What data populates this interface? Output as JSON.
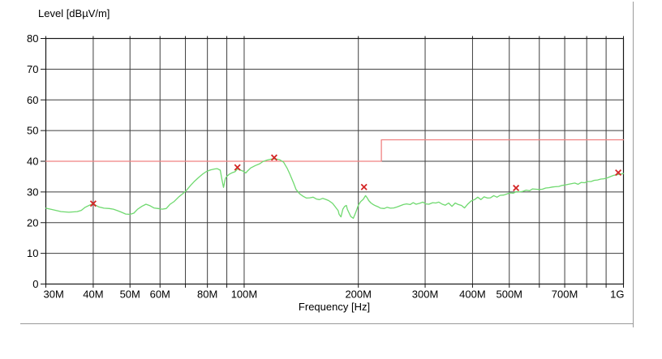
{
  "chart_data": {
    "type": "line",
    "title": "Level [dBµV/m]",
    "xlabel": "Frequency [Hz]",
    "x_scale": "log",
    "x_range_mhz": [
      30,
      1000
    ],
    "ylim": [
      0,
      80
    ],
    "grid": true,
    "legend": "none",
    "y_ticks": [
      0,
      10,
      20,
      30,
      40,
      50,
      60,
      70,
      80
    ],
    "x_gridlines_mhz": [
      30,
      40,
      50,
      60,
      70,
      80,
      90,
      100,
      200,
      300,
      400,
      500,
      600,
      700,
      800,
      900,
      1000
    ],
    "x_tick_labels": [
      {
        "mhz": 30,
        "label": "30M"
      },
      {
        "mhz": 40,
        "label": "40M"
      },
      {
        "mhz": 50,
        "label": "50M"
      },
      {
        "mhz": 60,
        "label": "60M"
      },
      {
        "mhz": 80,
        "label": "80M"
      },
      {
        "mhz": 100,
        "label": "100M"
      },
      {
        "mhz": 200,
        "label": "200M"
      },
      {
        "mhz": 300,
        "label": "300M"
      },
      {
        "mhz": 400,
        "label": "400M"
      },
      {
        "mhz": 500,
        "label": "500M"
      },
      {
        "mhz": 700,
        "label": "700M"
      },
      {
        "mhz": 1000,
        "label": "1G"
      }
    ],
    "colors": {
      "grid": "#3f3f3f",
      "axis": "#161616",
      "text": "#000000",
      "frame": "#9a9a9a"
    },
    "series": [
      {
        "name": "limit-line",
        "role": "emission-limit",
        "color": "#f08282",
        "width": 1.3,
        "points_mhz_db": [
          [
            30,
            40
          ],
          [
            230,
            40
          ],
          [
            230,
            47
          ],
          [
            1000,
            47
          ]
        ]
      },
      {
        "name": "measurement-trace",
        "role": "scan-trace",
        "color": "#6fd96f",
        "width": 1.3,
        "points_mhz_db": [
          [
            30,
            24.7
          ],
          [
            31.3,
            24.2
          ],
          [
            32.9,
            23.6
          ],
          [
            34.5,
            23.4
          ],
          [
            36.3,
            23.6
          ],
          [
            37.2,
            24.0
          ],
          [
            38.1,
            25.0
          ],
          [
            39.1,
            25.7
          ],
          [
            40,
            26.2
          ],
          [
            40.6,
            25.7
          ],
          [
            41.4,
            25.1
          ],
          [
            42.7,
            24.7
          ],
          [
            44.1,
            24.6
          ],
          [
            45.2,
            24.4
          ],
          [
            46.4,
            23.9
          ],
          [
            47.5,
            23.4
          ],
          [
            48.7,
            22.8
          ],
          [
            50,
            22.7
          ],
          [
            51.2,
            23.1
          ],
          [
            52.4,
            24.4
          ],
          [
            53.7,
            25.3
          ],
          [
            55.1,
            26.0
          ],
          [
            56.5,
            25.5
          ],
          [
            57.8,
            24.8
          ],
          [
            59.3,
            24.6
          ],
          [
            60.8,
            24.4
          ],
          [
            62.3,
            24.6
          ],
          [
            63.8,
            26.0
          ],
          [
            65.4,
            26.9
          ],
          [
            67.1,
            28.3
          ],
          [
            68.7,
            29.3
          ],
          [
            70.4,
            30.5
          ],
          [
            72.2,
            32.1
          ],
          [
            74,
            33.5
          ],
          [
            75.8,
            34.7
          ],
          [
            77.7,
            35.8
          ],
          [
            79.6,
            36.7
          ],
          [
            81.6,
            37.2
          ],
          [
            83.6,
            37.5
          ],
          [
            84.9,
            37.6
          ],
          [
            86.5,
            37.1
          ],
          [
            87.4,
            34.0
          ],
          [
            88.2,
            31.5
          ],
          [
            89.2,
            34.4
          ],
          [
            90,
            35.1
          ],
          [
            91.4,
            35.8
          ],
          [
            92.7,
            36.2
          ],
          [
            94.6,
            36.6
          ],
          [
            96,
            37.5
          ],
          [
            97.4,
            37.2
          ],
          [
            99.3,
            36.8
          ],
          [
            101,
            36.2
          ],
          [
            102,
            36.8
          ],
          [
            104,
            37.8
          ],
          [
            107,
            38.6
          ],
          [
            110,
            39.2
          ],
          [
            112,
            39.9
          ],
          [
            115,
            40.4
          ],
          [
            118,
            40.7
          ],
          [
            121,
            40.8
          ],
          [
            124,
            40.5
          ],
          [
            127,
            39.7
          ],
          [
            130,
            37.6
          ],
          [
            132,
            35.8
          ],
          [
            135,
            32.9
          ],
          [
            137,
            30.8
          ],
          [
            140,
            29.4
          ],
          [
            143,
            28.6
          ],
          [
            146,
            28.0
          ],
          [
            149,
            28.1
          ],
          [
            152,
            28.3
          ],
          [
            155,
            27.7
          ],
          [
            158,
            27.5
          ],
          [
            161,
            27.9
          ],
          [
            164,
            27.6
          ],
          [
            167,
            27.2
          ],
          [
            171,
            26.3
          ],
          [
            174,
            25.1
          ],
          [
            177,
            23.9
          ],
          [
            178,
            22.7
          ],
          [
            180,
            21.9
          ],
          [
            182,
            24.4
          ],
          [
            184,
            25.3
          ],
          [
            186,
            25.6
          ],
          [
            187,
            24.4
          ],
          [
            189,
            23.2
          ],
          [
            191,
            22.0
          ],
          [
            194,
            21.4
          ],
          [
            197,
            23.4
          ],
          [
            200,
            25.7
          ],
          [
            203,
            26.9
          ],
          [
            206,
            27.6
          ],
          [
            209,
            28.8
          ],
          [
            211,
            28.1
          ],
          [
            213,
            27.2
          ],
          [
            216,
            26.4
          ],
          [
            219,
            25.9
          ],
          [
            222,
            25.5
          ],
          [
            226,
            25.1
          ],
          [
            229,
            24.7
          ],
          [
            234,
            24.6
          ],
          [
            238,
            25.0
          ],
          [
            243,
            24.7
          ],
          [
            248,
            24.8
          ],
          [
            253,
            25.1
          ],
          [
            258,
            25.5
          ],
          [
            263,
            25.9
          ],
          [
            268,
            26.1
          ],
          [
            274,
            25.9
          ],
          [
            279,
            26.5
          ],
          [
            284,
            26.0
          ],
          [
            290,
            26.3
          ],
          [
            296,
            26.7
          ],
          [
            301,
            26.1
          ],
          [
            307,
            26.0
          ],
          [
            314,
            26.5
          ],
          [
            320,
            26.4
          ],
          [
            326,
            26.7
          ],
          [
            333,
            26.0
          ],
          [
            339,
            25.7
          ],
          [
            346,
            26.4
          ],
          [
            353,
            25.3
          ],
          [
            360,
            26.4
          ],
          [
            367,
            25.9
          ],
          [
            374,
            25.6
          ],
          [
            381,
            24.8
          ],
          [
            389,
            26.1
          ],
          [
            397,
            27.1
          ],
          [
            405,
            27.5
          ],
          [
            413,
            28.3
          ],
          [
            421,
            27.5
          ],
          [
            429,
            28.4
          ],
          [
            438,
            28.0
          ],
          [
            446,
            28.1
          ],
          [
            455,
            28.8
          ],
          [
            464,
            28.3
          ],
          [
            473,
            28.9
          ],
          [
            483,
            29.0
          ],
          [
            492,
            29.3
          ],
          [
            502,
            29.7
          ],
          [
            512,
            29.6
          ],
          [
            522,
            30.1
          ],
          [
            533,
            30.0
          ],
          [
            543,
            30.2
          ],
          [
            554,
            30.6
          ],
          [
            565,
            30.4
          ],
          [
            576,
            31.0
          ],
          [
            588,
            30.9
          ],
          [
            600,
            30.8
          ],
          [
            611,
            30.9
          ],
          [
            624,
            31.3
          ],
          [
            636,
            31.4
          ],
          [
            649,
            31.6
          ],
          [
            661,
            31.7
          ],
          [
            675,
            31.8
          ],
          [
            688,
            32.1
          ],
          [
            702,
            32.3
          ],
          [
            716,
            32.5
          ],
          [
            730,
            32.7
          ],
          [
            744,
            32.9
          ],
          [
            759,
            32.5
          ],
          [
            774,
            33.1
          ],
          [
            790,
            33.0
          ],
          [
            805,
            33.4
          ],
          [
            821,
            33.4
          ],
          [
            838,
            33.8
          ],
          [
            854,
            33.9
          ],
          [
            871,
            34.2
          ],
          [
            888,
            34.3
          ],
          [
            906,
            34.6
          ],
          [
            924,
            35.0
          ],
          [
            942,
            35.4
          ],
          [
            961,
            35.6
          ],
          [
            976,
            35.8
          ],
          [
            990,
            35.9
          ],
          [
            1000,
            36.0
          ]
        ]
      },
      {
        "name": "final-measurement-markers",
        "role": "final-measurements",
        "marker": "x",
        "color": "#d42626",
        "points_mhz_db": [
          [
            40,
            26.2
          ],
          [
            96,
            38.0
          ],
          [
            120,
            41.2
          ],
          [
            207,
            31.6
          ],
          [
            521,
            31.3
          ],
          [
            969,
            36.3
          ]
        ]
      }
    ]
  },
  "frame": {
    "right_border": true,
    "bottom_border": true
  }
}
